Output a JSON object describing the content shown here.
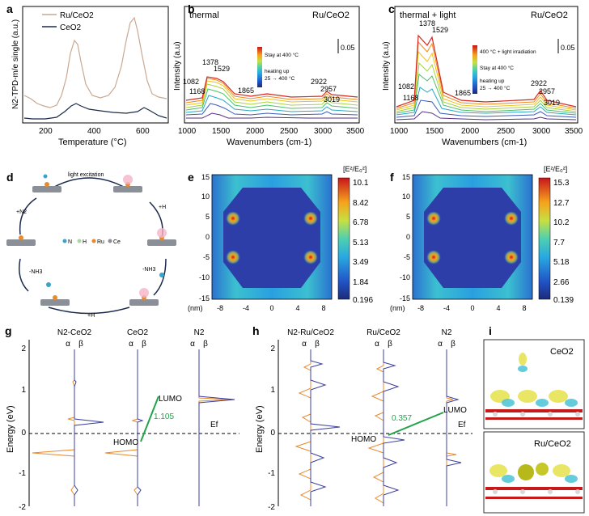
{
  "panels": {
    "a": {
      "letter": "a",
      "ylabel": "N2-TPD-m/e single (a.u.)",
      "xlabel": "Temperature (°C)",
      "legend": [
        "Ru/CeO2",
        "CeO2"
      ],
      "xticks": [
        "200",
        "400",
        "600"
      ],
      "colors": {
        "ru": "#c9a891",
        "ceo2": "#1b2a4a"
      }
    },
    "b": {
      "letter": "b",
      "corner_title": "thermal",
      "sample": "Ru/CeO2",
      "ylabel": "Intensity (a.u)",
      "xlabel": "Wavenumbers (cm-1)",
      "xticks": [
        "1000",
        "1500",
        "2000",
        "2500",
        "3000",
        "3500"
      ],
      "peaks": [
        "1082",
        "1168",
        "1378",
        "1529",
        "1865",
        "2922",
        "2957",
        "3019"
      ],
      "scale": "0.05",
      "legend": [
        "Stay at 400 °C",
        "heating up",
        "25 → 400 °C"
      ]
    },
    "c": {
      "letter": "c",
      "corner_title": "thermal + light",
      "sample": "Ru/CeO2",
      "ylabel": "Intensity (a.u)",
      "xlabel": "Wavenumbers (cm-1)",
      "xticks": [
        "1000",
        "1500",
        "2000",
        "2500",
        "3000",
        "3500"
      ],
      "peaks": [
        "1082",
        "1168",
        "1378",
        "1529",
        "1865",
        "2922",
        "2957",
        "3019"
      ],
      "scale": "0.05",
      "legend": [
        "400 °C + light irradiation",
        "Stay at 400 °C",
        "heating up",
        "25 → 400 °C"
      ]
    },
    "d": {
      "letter": "d",
      "steps": [
        "light excitation",
        "+H",
        "-NH3",
        "+H",
        "-NH3",
        "+N2"
      ],
      "key": [
        "N",
        "H",
        "Ru",
        "Ce"
      ]
    },
    "e": {
      "letter": "e",
      "colorbar_title": "[E²/E₀²]",
      "colorbar_ticks": [
        "10.1",
        "8.42",
        "6.78",
        "5.13",
        "3.49",
        "1.84",
        "0.196"
      ],
      "yticks": [
        "15",
        "10",
        "5",
        "0",
        "-5",
        "-10",
        "-15"
      ],
      "xticks": [
        "-8",
        "-4",
        "0",
        "4",
        "8"
      ],
      "unit": "(nm)"
    },
    "f": {
      "letter": "f",
      "colorbar_title": "[E²/E₀²]",
      "colorbar_ticks": [
        "15.3",
        "12.7",
        "10.2",
        "7.7",
        "5.18",
        "2.66",
        "0.139"
      ],
      "yticks": [
        "15",
        "10",
        "5",
        "0",
        "-5",
        "-10",
        "-15"
      ],
      "xticks": [
        "-8",
        "-4",
        "0",
        "4",
        "8"
      ],
      "unit": "(nm)"
    },
    "g": {
      "letter": "g",
      "ylabel": "Energy (eV)",
      "yticks": [
        "2",
        "1",
        "0",
        "-1",
        "-2"
      ],
      "columns": [
        "N2-CeO2",
        "CeO2",
        "N2"
      ],
      "spin": [
        "α",
        "β"
      ],
      "gap": "1.105",
      "labels": {
        "lumo": "LUMO",
        "homo": "HOMO",
        "ef": "Ef"
      }
    },
    "h": {
      "letter": "h",
      "ylabel": "Energy (eV)",
      "yticks": [
        "2",
        "1",
        "0",
        "-1",
        "-2"
      ],
      "columns": [
        "N2-Ru/CeO2",
        "Ru/CeO2",
        "N2"
      ],
      "spin": [
        "α",
        "β"
      ],
      "gap": "0.357",
      "labels": {
        "lumo": "LUMO",
        "homo": "HOMO",
        "ef": "Ef"
      }
    },
    "i": {
      "letter": "i",
      "top": "CeO2",
      "bottom": "Ru/CeO2"
    }
  },
  "colors": {
    "orange": "#e8892c",
    "blue": "#3a3fa0",
    "green": "#22a24a"
  }
}
